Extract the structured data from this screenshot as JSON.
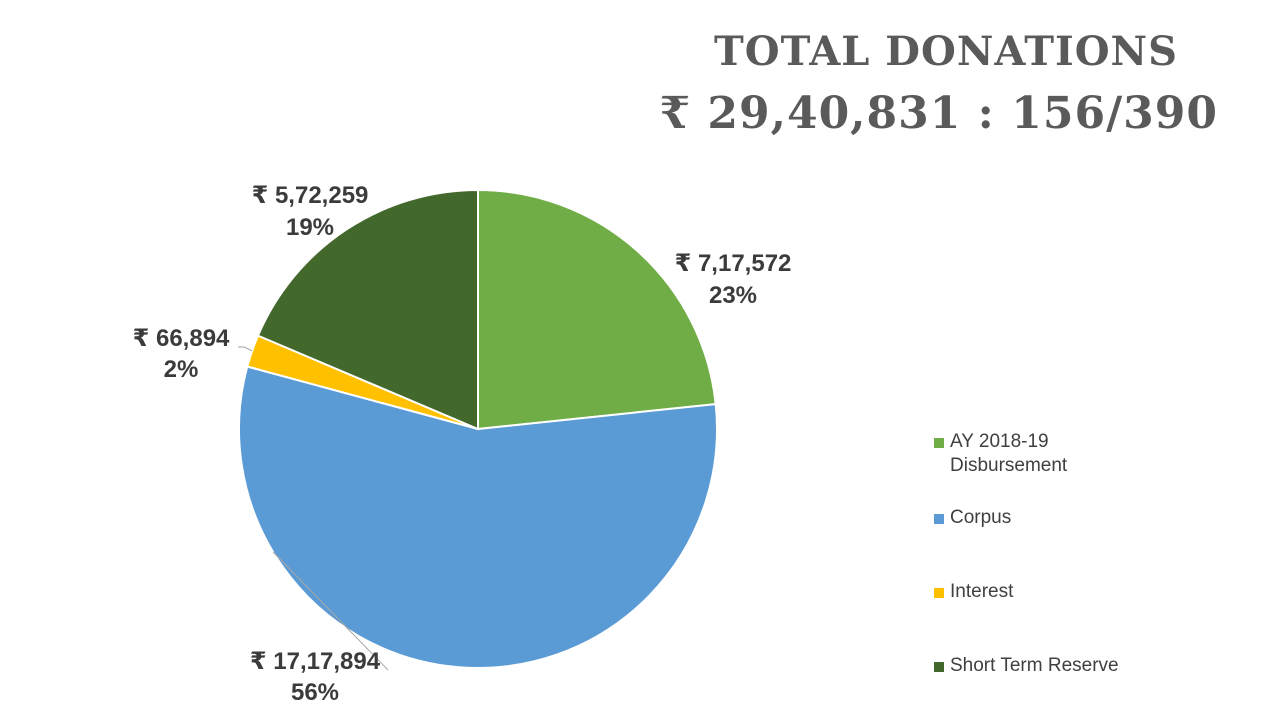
{
  "title": {
    "line1": "TOTAL DONATIONS",
    "line2": "₹ 29,40,831 : 156/390"
  },
  "chart_data": {
    "type": "pie",
    "categories": [
      "AY 2018-19 Disbursement",
      "Corpus",
      "Interest",
      "Short Term Reserve"
    ],
    "values": [
      717572,
      1717894,
      66894,
      572259
    ],
    "value_labels": [
      "₹ 7,17,572",
      "₹ 17,17,894",
      "₹ 66,894",
      "₹ 5,72,259"
    ],
    "percent_labels": [
      "23%",
      "56%",
      "2%",
      "19%"
    ],
    "colors": [
      "#70ad47",
      "#5b9bd5",
      "#ffc000",
      "#43682b"
    ],
    "legend_position": "right"
  },
  "legend": {
    "items": [
      {
        "label_line1": "AY 2018-19",
        "label_line2": "Disbursement",
        "color": "#70ad47"
      },
      {
        "label_line1": "Corpus",
        "label_line2": "",
        "color": "#5b9bd5"
      },
      {
        "label_line1": "Interest",
        "label_line2": "",
        "color": "#ffc000"
      },
      {
        "label_line1": "Short Term Reserve",
        "label_line2": "",
        "color": "#43682b"
      }
    ]
  }
}
